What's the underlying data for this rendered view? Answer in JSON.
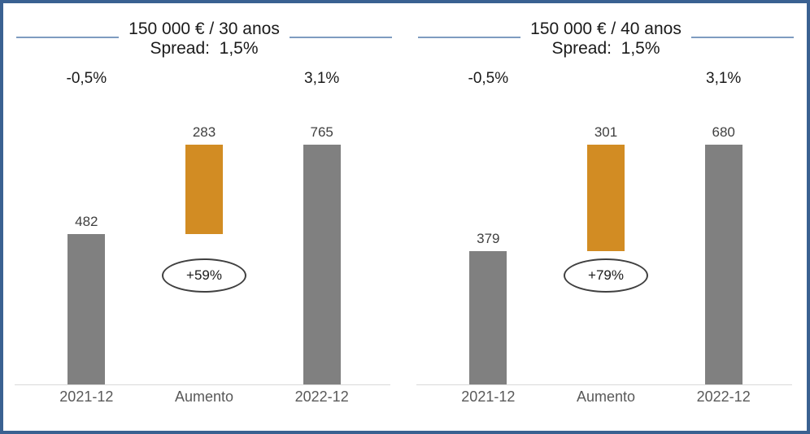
{
  "frame": {
    "border_color": "#3A6191",
    "background": "#FFFFFF"
  },
  "colors": {
    "bar_gray": "#808080",
    "bar_orange": "#D28C23",
    "title_rule_blue": "#7E9CC0",
    "axis_line": "#D9D9D9",
    "value_label": "#404040",
    "axis_label": "#595959"
  },
  "chart_data": [
    {
      "type": "bar",
      "subtype": "waterfall",
      "title": "150 000 € / 30 anos",
      "subtitle": "Spread:  1,5%",
      "categories": [
        "2021-12",
        "Aumento",
        "2022-12"
      ],
      "values": [
        482,
        283,
        765
      ],
      "data_labels": [
        "482",
        "283",
        "765"
      ],
      "bar_colors": [
        "#808080",
        "#D28C23",
        "#808080"
      ],
      "waterfall_note": "middle bar floats, starting at first bar value 482 and ending at 765",
      "rate_annotations": [
        {
          "label": "-0,5%",
          "category": "2021-12"
        },
        {
          "label": "3,1%",
          "category": "2022-12"
        }
      ],
      "increase_badge": "+59%",
      "ylim": [
        0,
        800
      ],
      "grid": false,
      "legend": false
    },
    {
      "type": "bar",
      "subtype": "waterfall",
      "title": "150 000 € / 40 anos",
      "subtitle": "Spread:  1,5%",
      "categories": [
        "2021-12",
        "Aumento",
        "2022-12"
      ],
      "values": [
        379,
        301,
        680
      ],
      "data_labels": [
        "379",
        "301",
        "680"
      ],
      "bar_colors": [
        "#808080",
        "#D28C23",
        "#808080"
      ],
      "waterfall_note": "middle bar floats, starting at first bar value 379 and ending at 680",
      "rate_annotations": [
        {
          "label": "-0,5%",
          "category": "2021-12"
        },
        {
          "label": "3,1%",
          "category": "2022-12"
        }
      ],
      "increase_badge": "+79%",
      "ylim": [
        0,
        720
      ],
      "grid": false,
      "legend": false
    }
  ]
}
